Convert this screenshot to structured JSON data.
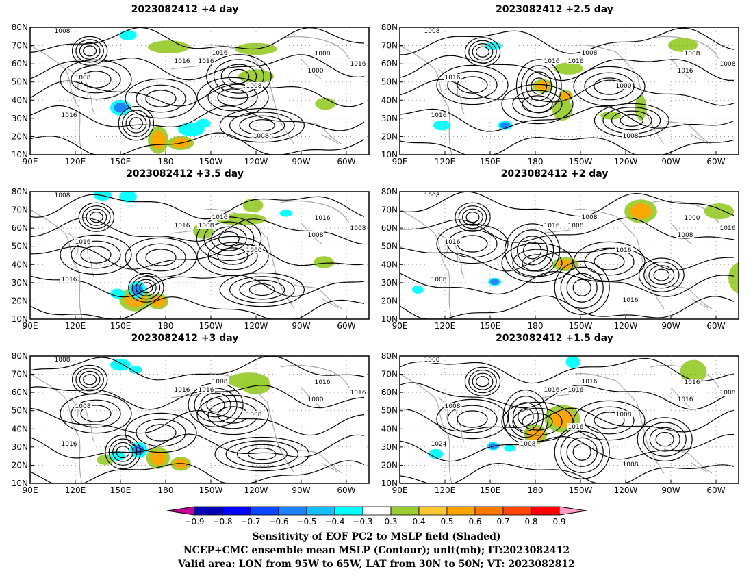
{
  "panels": [
    {
      "title": "2023082412  +4 day",
      "contour_labels": [
        "1008",
        "1008",
        "1016",
        "1016",
        "1016",
        "1008",
        "1008",
        "1000",
        "1016",
        "1016",
        "1008"
      ],
      "sens_pos": [
        [
          115,
          85,
          24,
          10
        ],
        [
          118,
          100,
          10,
          14
        ],
        [
          20,
          92,
          9,
          24
        ],
        [
          50,
          150,
          10,
          20
        ],
        [
          22,
          150,
          8,
          24
        ],
        [
          78,
          196,
          8,
          10
        ]
      ],
      "sens_neg": [
        [
          82,
          60,
          12,
          10
        ],
        [
          104,
          107,
          10,
          14
        ],
        [
          8,
          65,
          6,
          8
        ],
        [
          98,
          115,
          5,
          6
        ]
      ],
      "lows": [
        [
          100,
          70,
          16,
          6
        ],
        [
          98,
          32,
          6,
          6
        ],
        [
          24,
          18,
          6,
          5
        ],
        [
          50,
          63,
          12,
          8
        ]
      ]
    },
    {
      "title": "2023082412  +2.5 day",
      "contour_labels": [
        "1008",
        "1016",
        "1016",
        "1008",
        "1016",
        "1000",
        "1008",
        "1016",
        "1008",
        "1016",
        "1008"
      ],
      "sens_pos": [
        [
          60,
          95,
          10,
          10
        ],
        [
          70,
          110,
          8,
          6
        ],
        [
          18,
          188,
          10,
          16
        ],
        [
          84,
          108,
          18,
          10
        ],
        [
          90,
          140,
          4,
          10
        ],
        [
          42,
          112,
          8,
          16
        ],
        [
          82,
          160,
          22,
          4
        ]
      ],
      "sens_neg": [
        [
          100,
          70,
          5,
          6
        ],
        [
          100,
          28,
          6,
          8
        ],
        [
          19,
          62,
          4,
          8
        ]
      ],
      "lows": [
        [
          95,
          70,
          14,
          6
        ],
        [
          25,
          25,
          6,
          5
        ],
        [
          60,
          42,
          8,
          10
        ]
      ]
    },
    {
      "title": "2023082412  +3.5 day",
      "contour_labels": [
        "1008",
        "1016",
        "1016",
        "1016",
        "1008",
        "1000",
        "1016",
        "1008",
        "1008",
        "1016"
      ],
      "sens_pos": [
        [
          110,
          70,
          20,
          18
        ],
        [
          112,
          85,
          12,
          10
        ],
        [
          28,
          140,
          8,
          30
        ],
        [
          40,
          115,
          12,
          10
        ],
        [
          14,
          148,
          10,
          10
        ],
        [
          72,
          195,
          8,
          10
        ],
        [
          44,
          285,
          14,
          16
        ]
      ],
      "sens_neg": [
        [
          100,
          71,
          14,
          8
        ],
        [
          104,
          58,
          6,
          6
        ],
        [
          5,
          65,
          8,
          8
        ],
        [
          3,
          48,
          8,
          8
        ],
        [
          22,
          170,
          3,
          5
        ]
      ],
      "lows": [
        [
          100,
          70,
          16,
          6
        ],
        [
          98,
          35,
          6,
          5
        ],
        [
          26,
          20,
          6,
          5
        ],
        [
          48,
          60,
          12,
          8
        ]
      ]
    },
    {
      "title": "2023082412  +2 day",
      "contour_labels": [
        "1008",
        "1016",
        "1016",
        "1008",
        "1008",
        "1016",
        "1000",
        "1008",
        "1016",
        "1008",
        "1016"
      ],
      "sens_pos": [
        [
          74,
          110,
          10,
          14
        ],
        [
          20,
          160,
          20,
          18
        ],
        [
          88,
          228,
          30,
          16
        ],
        [
          88,
          240,
          20,
          14
        ],
        [
          66,
          240,
          10,
          12
        ],
        [
          20,
          212,
          12,
          16
        ]
      ],
      "sens_neg": [
        [
          92,
          63,
          4,
          5
        ],
        [
          70,
          260,
          6,
          10
        ],
        [
          100,
          12,
          4,
          4
        ]
      ],
      "lows": [
        [
          98,
          55,
          10,
          10
        ],
        [
          26,
          22,
          6,
          5
        ],
        [
          60,
          40,
          10,
          10
        ],
        [
          85,
          79,
          8,
          6
        ]
      ]
    },
    {
      "title": "2023082412  +3 day",
      "contour_labels": [
        "1008",
        "1008",
        "1016",
        "1008",
        "1016",
        "1008",
        "1016",
        "1000",
        "1016",
        "1016"
      ],
      "sens_pos": [
        [
          104,
          85,
          18,
          12
        ],
        [
          110,
          100,
          10,
          10
        ],
        [
          25,
          145,
          12,
          24
        ],
        [
          30,
          150,
          14,
          16
        ],
        [
          40,
          295,
          12,
          14
        ],
        [
          106,
          50,
          6,
          8
        ]
      ],
      "sens_neg": [
        [
          96,
          72,
          12,
          8
        ],
        [
          102,
          58,
          6,
          6
        ],
        [
          9,
          60,
          8,
          10
        ],
        [
          14,
          70,
          4,
          5
        ],
        [
          10,
          62,
          4,
          5
        ]
      ],
      "lows": [
        [
          100,
          70,
          18,
          6
        ],
        [
          98,
          28,
          6,
          6
        ],
        [
          24,
          18,
          6,
          5
        ],
        [
          50,
          56,
          10,
          8
        ]
      ]
    },
    {
      "title": "2023082412  +1.5 day",
      "contour_labels": [
        "1000",
        "1008",
        "1016",
        "1016",
        "1016",
        "1008",
        "1016",
        "1016",
        "1008",
        "1024",
        "1008",
        "1008",
        "1016"
      ],
      "sens_pos": [
        [
          64,
          108,
          24,
          20
        ],
        [
          80,
          90,
          16,
          12
        ],
        [
          16,
          195,
          20,
          14
        ],
        [
          30,
          260,
          12,
          8
        ],
        [
          100,
          25,
          4,
          4
        ]
      ],
      "sens_neg": [
        [
          92,
          62,
          4,
          5
        ],
        [
          6,
          115,
          8,
          6
        ],
        [
          100,
          24,
          6,
          6
        ],
        [
          94,
          73,
          3,
          4
        ]
      ],
      "lows": [
        [
          98,
          55,
          10,
          10
        ],
        [
          26,
          25,
          6,
          5
        ],
        [
          62,
          38,
          8,
          10
        ],
        [
          85,
          80,
          10,
          8
        ]
      ]
    }
  ],
  "axes": {
    "lat_labels": [
      "10N",
      "20N",
      "30N",
      "40N",
      "50N",
      "60N",
      "70N",
      "80N"
    ],
    "lon_labels": [
      "90E",
      "120E",
      "150E",
      "180",
      "150W",
      "120W",
      "90W",
      "60W"
    ]
  },
  "colorbar": {
    "ticks": [
      "−0.9",
      "−0.8",
      "−0.7",
      "−0.6",
      "−0.5",
      "−0.4",
      "−0.3",
      "0.3",
      "0.4",
      "0.5",
      "0.6",
      "0.7",
      "0.8",
      "0.9"
    ],
    "colors": [
      "#0000b4",
      "#0000ff",
      "#0a46ff",
      "#1e82ff",
      "#14bfff",
      "#00ffff",
      "#ffffff",
      "#9acd32",
      "#ffc832",
      "#ffa500",
      "#ff7800",
      "#ff4600",
      "#ff0000"
    ],
    "low_end_color": "#c8009a",
    "high_end_color": "#ff9fc8"
  },
  "captions": {
    "line1": "Sensitivity of EOF PC2 to MSLP field (Shaded)",
    "line2": "NCEP+CMC ensemble mean MSLP (Contour); unit(mb); IT:2023082412",
    "line3": "Valid area: LON from 95W to 65W, LAT from 30N to 50N; VT: 2023082812"
  }
}
